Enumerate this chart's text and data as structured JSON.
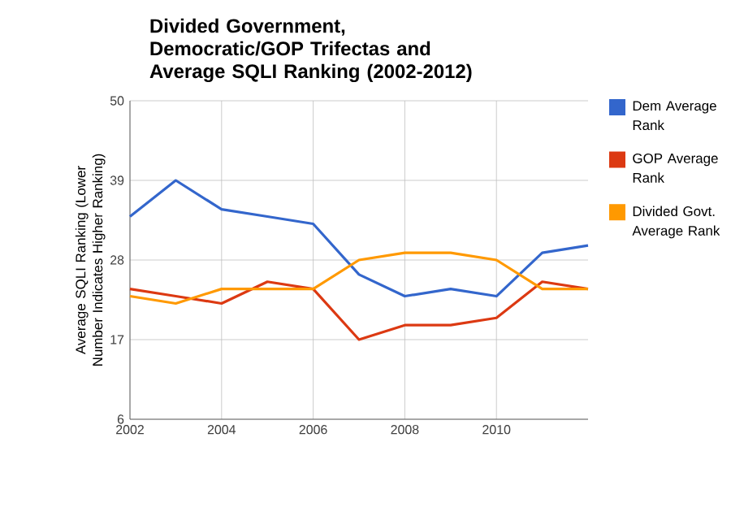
{
  "chart_data": {
    "type": "line",
    "title": "Divided Government, Democratic/GOP Trifectas and Average SQLI Ranking (2002-2012)",
    "ylabel": "Average SQLI Ranking (Lower Number Indicates Higher Ranking)",
    "x": [
      2002,
      2003,
      2004,
      2005,
      2006,
      2007,
      2008,
      2009,
      2010,
      2011,
      2012
    ],
    "series": [
      {
        "name": "Dem Average Rank",
        "color": "#3366cc",
        "values": [
          34,
          39,
          35,
          34,
          33,
          26,
          23,
          24,
          23,
          29,
          30
        ]
      },
      {
        "name": "GOP Average Rank",
        "color": "#dc3912",
        "values": [
          24,
          23,
          22,
          25,
          24,
          17,
          19,
          19,
          20,
          25,
          24
        ]
      },
      {
        "name": "Divided Govt. Average Rank",
        "color": "#ff9900",
        "values": [
          23,
          22,
          24,
          24,
          24,
          28,
          29,
          29,
          28,
          24,
          24
        ]
      }
    ],
    "xlim": [
      2002,
      2012
    ],
    "xticks": [
      2002,
      2004,
      2006,
      2008,
      2010
    ],
    "ylim": [
      6,
      50
    ],
    "yticks": [
      6,
      17,
      28,
      39,
      50
    ],
    "grid": true,
    "legend": "right",
    "marker": "none",
    "line_style": "solid"
  }
}
